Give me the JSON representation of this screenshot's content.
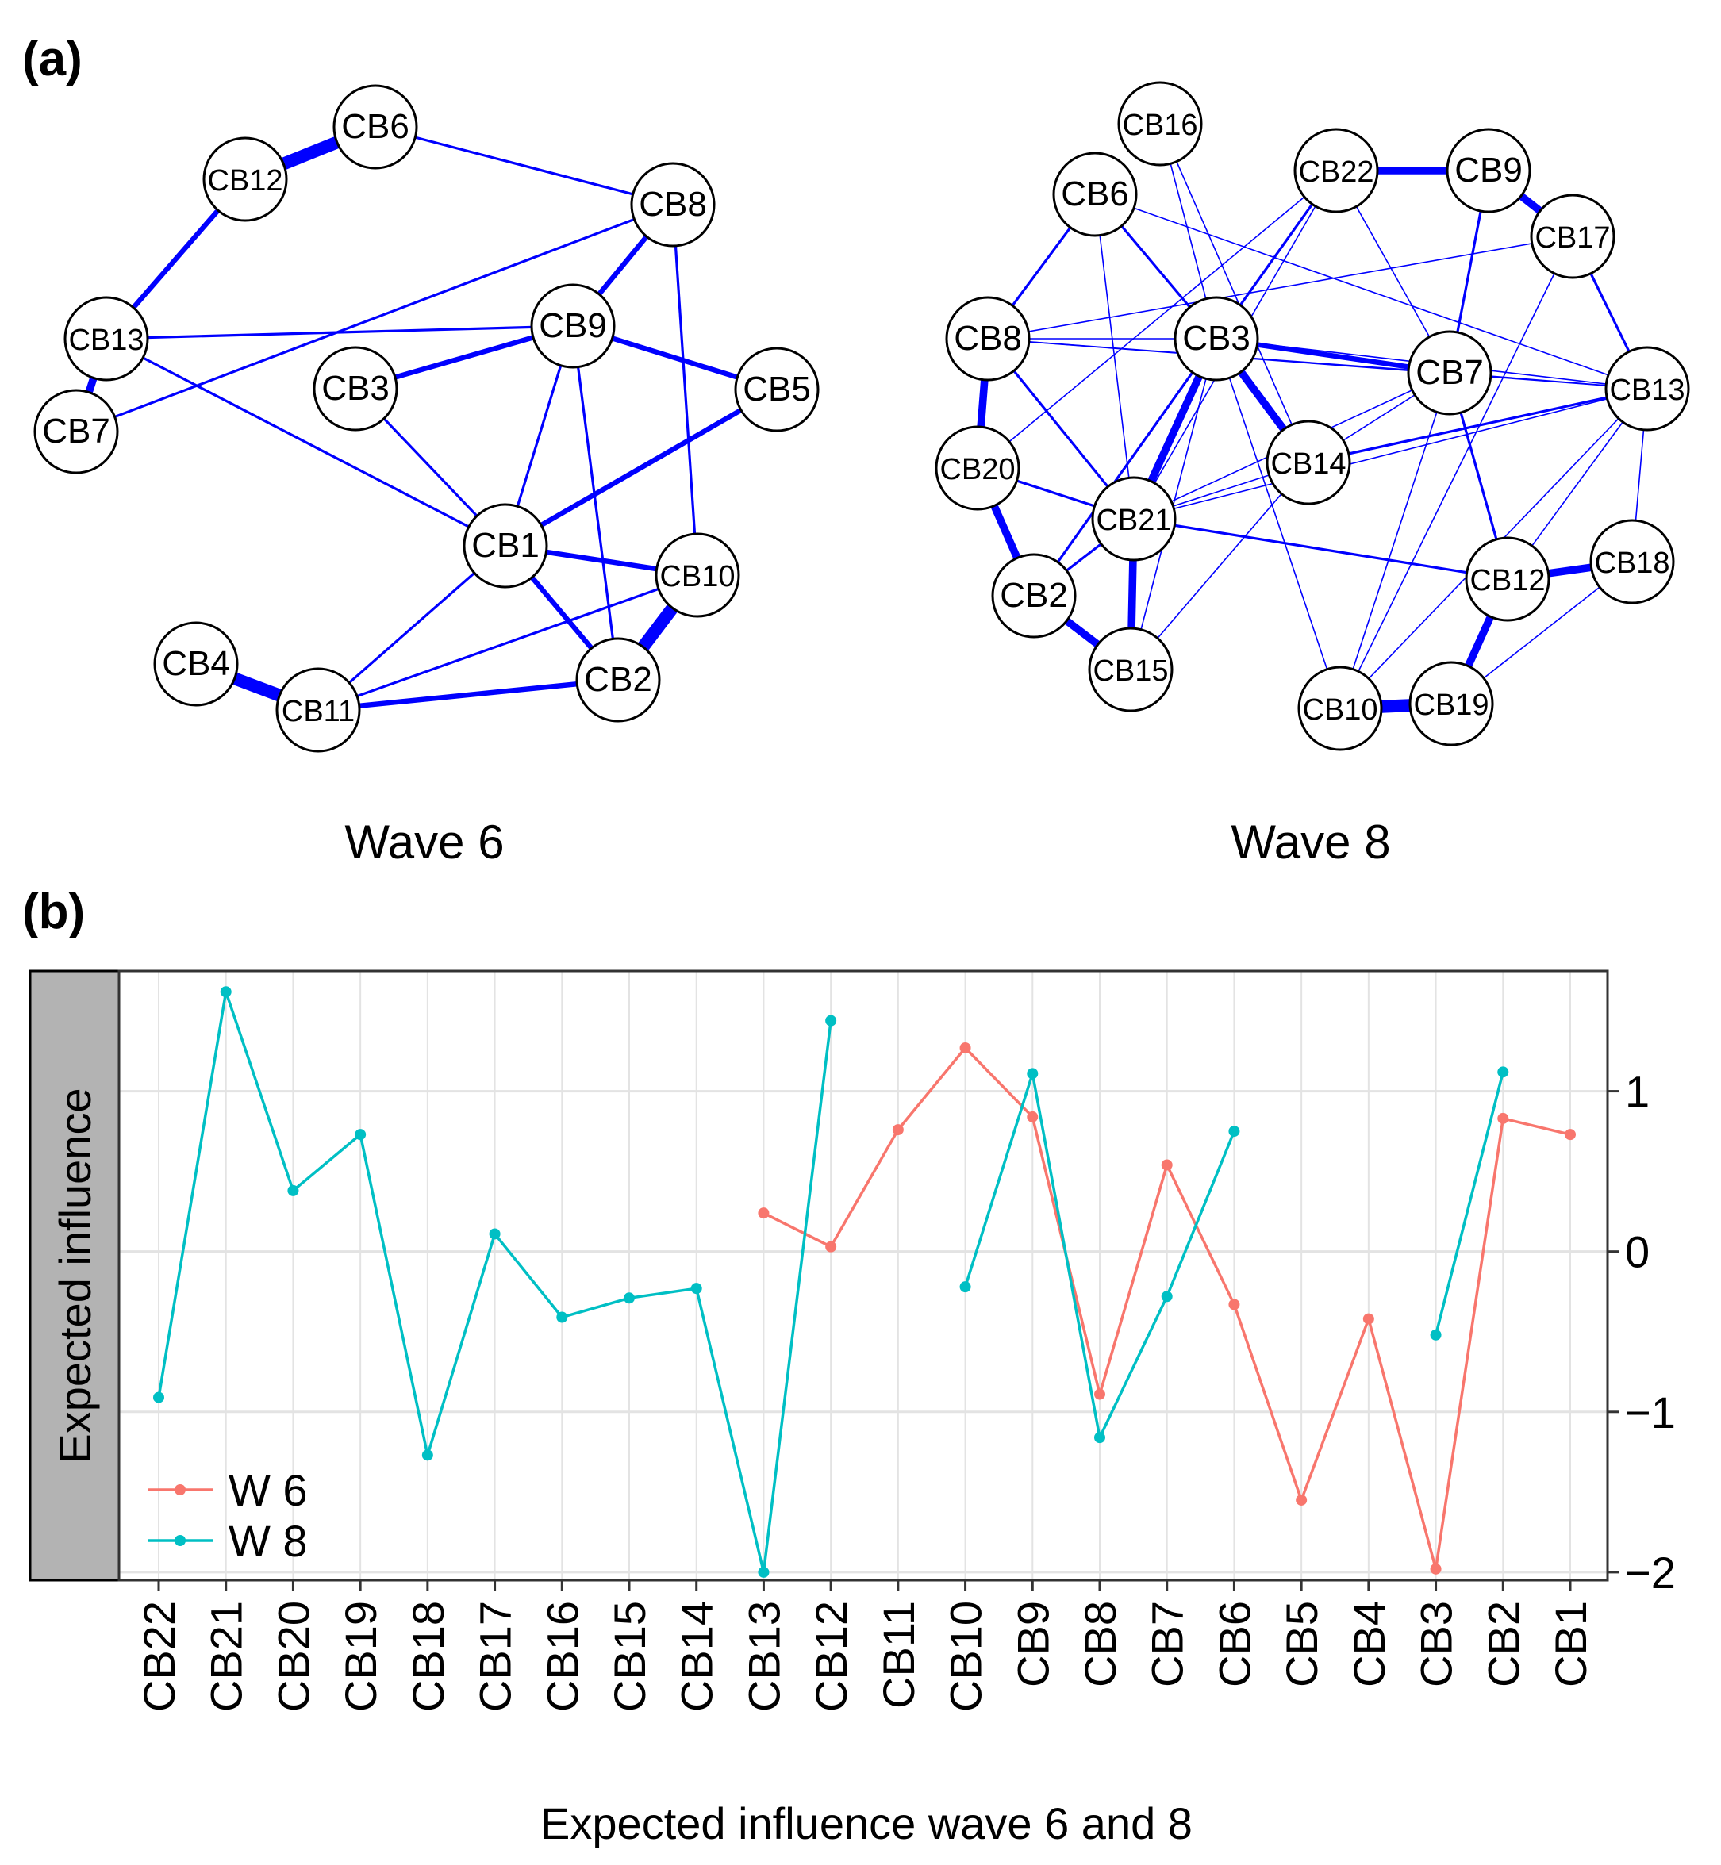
{
  "panel_a": {
    "label": "(a)",
    "edge_color": "#0000ff",
    "networks": [
      {
        "caption": "Wave 6",
        "nodes": [
          "CB1",
          "CB2",
          "CB3",
          "CB4",
          "CB5",
          "CB6",
          "CB7",
          "CB8",
          "CB9",
          "CB10",
          "CB11",
          "CB12",
          "CB13"
        ],
        "edges": [
          {
            "from": "CB12",
            "to": "CB6",
            "weight": 5
          },
          {
            "from": "CB12",
            "to": "CB13",
            "weight": 2
          },
          {
            "from": "CB13",
            "to": "CB7",
            "weight": 3
          },
          {
            "from": "CB6",
            "to": "CB8",
            "weight": 1
          },
          {
            "from": "CB7",
            "to": "CB8",
            "weight": 1
          },
          {
            "from": "CB13",
            "to": "CB9",
            "weight": 1
          },
          {
            "from": "CB13",
            "to": "CB1",
            "weight": 1
          },
          {
            "from": "CB8",
            "to": "CB9",
            "weight": 2
          },
          {
            "from": "CB8",
            "to": "CB10",
            "weight": 1
          },
          {
            "from": "CB9",
            "to": "CB3",
            "weight": 2
          },
          {
            "from": "CB9",
            "to": "CB5",
            "weight": 2
          },
          {
            "from": "CB9",
            "to": "CB1",
            "weight": 1
          },
          {
            "from": "CB9",
            "to": "CB2",
            "weight": 1
          },
          {
            "from": "CB3",
            "to": "CB1",
            "weight": 1
          },
          {
            "from": "CB5",
            "to": "CB1",
            "weight": 2
          },
          {
            "from": "CB1",
            "to": "CB10",
            "weight": 2
          },
          {
            "from": "CB1",
            "to": "CB2",
            "weight": 2
          },
          {
            "from": "CB1",
            "to": "CB11",
            "weight": 1
          },
          {
            "from": "CB10",
            "to": "CB2",
            "weight": 5
          },
          {
            "from": "CB10",
            "to": "CB11",
            "weight": 1
          },
          {
            "from": "CB2",
            "to": "CB11",
            "weight": 2
          },
          {
            "from": "CB4",
            "to": "CB11",
            "weight": 5
          }
        ]
      },
      {
        "caption": "Wave 8",
        "nodes": [
          "CB2",
          "CB3",
          "CB6",
          "CB7",
          "CB8",
          "CB9",
          "CB10",
          "CB12",
          "CB13",
          "CB14",
          "CB15",
          "CB16",
          "CB17",
          "CB18",
          "CB19",
          "CB20",
          "CB21",
          "CB22"
        ],
        "edges": [
          {
            "from": "CB22",
            "to": "CB9",
            "weight": 3
          },
          {
            "from": "CB9",
            "to": "CB17",
            "weight": 3
          },
          {
            "from": "CB9",
            "to": "CB7",
            "weight": 1
          },
          {
            "from": "CB17",
            "to": "CB13",
            "weight": 1
          },
          {
            "from": "CB6",
            "to": "CB8",
            "weight": 1
          },
          {
            "from": "CB6",
            "to": "CB3",
            "weight": 1
          },
          {
            "from": "CB6",
            "to": "CB21",
            "weight": 0.5
          },
          {
            "from": "CB6",
            "to": "CB13",
            "weight": 0.5
          },
          {
            "from": "CB16",
            "to": "CB3",
            "weight": 0.5
          },
          {
            "from": "CB16",
            "to": "CB14",
            "weight": 0.5
          },
          {
            "from": "CB22",
            "to": "CB3",
            "weight": 1
          },
          {
            "from": "CB22",
            "to": "CB21",
            "weight": 0.5
          },
          {
            "from": "CB22",
            "to": "CB20",
            "weight": 0.5
          },
          {
            "from": "CB22",
            "to": "CB7",
            "weight": 0.5
          },
          {
            "from": "CB8",
            "to": "CB3",
            "weight": 0.5
          },
          {
            "from": "CB8",
            "to": "CB7",
            "weight": 0.5
          },
          {
            "from": "CB8",
            "to": "CB20",
            "weight": 3
          },
          {
            "from": "CB8",
            "to": "CB21",
            "weight": 1
          },
          {
            "from": "CB8",
            "to": "CB17",
            "weight": 0.5
          },
          {
            "from": "CB8",
            "to": "CB13",
            "weight": 0.5
          },
          {
            "from": "CB3",
            "to": "CB7",
            "weight": 2
          },
          {
            "from": "CB3",
            "to": "CB14",
            "weight": 3
          },
          {
            "from": "CB3",
            "to": "CB21",
            "weight": 3
          },
          {
            "from": "CB3",
            "to": "CB2",
            "weight": 1
          },
          {
            "from": "CB3",
            "to": "CB15",
            "weight": 0.5
          },
          {
            "from": "CB3",
            "to": "CB10",
            "weight": 0.5
          },
          {
            "from": "CB3",
            "to": "CB13",
            "weight": 0.5
          },
          {
            "from": "CB7",
            "to": "CB14",
            "weight": 0.5
          },
          {
            "from": "CB7",
            "to": "CB21",
            "weight": 0.5
          },
          {
            "from": "CB7",
            "to": "CB12",
            "weight": 1
          },
          {
            "from": "CB7",
            "to": "CB10",
            "weight": 0.5
          },
          {
            "from": "CB7",
            "to": "CB13",
            "weight": 0.5
          },
          {
            "from": "CB14",
            "to": "CB13",
            "weight": 1
          },
          {
            "from": "CB14",
            "to": "CB21",
            "weight": 0.5
          },
          {
            "from": "CB20",
            "to": "CB21",
            "weight": 1
          },
          {
            "from": "CB20",
            "to": "CB2",
            "weight": 3
          },
          {
            "from": "CB21",
            "to": "CB2",
            "weight": 1
          },
          {
            "from": "CB21",
            "to": "CB15",
            "weight": 3
          },
          {
            "from": "CB21",
            "to": "CB12",
            "weight": 1
          },
          {
            "from": "CB2",
            "to": "CB15",
            "weight": 3
          },
          {
            "from": "CB15",
            "to": "CB14",
            "weight": 0.5
          },
          {
            "from": "CB12",
            "to": "CB18",
            "weight": 3
          },
          {
            "from": "CB12",
            "to": "CB19",
            "weight": 3
          },
          {
            "from": "CB12",
            "to": "CB13",
            "weight": 0.5
          },
          {
            "from": "CB10",
            "to": "CB19",
            "weight": 5
          },
          {
            "from": "CB10",
            "to": "CB17",
            "weight": 0.5
          },
          {
            "from": "CB10",
            "to": "CB13",
            "weight": 0.5
          },
          {
            "from": "CB19",
            "to": "CB18",
            "weight": 0.5
          },
          {
            "from": "CB13",
            "to": "CB18",
            "weight": 0.5
          },
          {
            "from": "CB21",
            "to": "CB13",
            "weight": 0.5
          }
        ]
      }
    ]
  },
  "panel_b": {
    "label": "(b)",
    "strip_label": "Expected influence",
    "strip_color": "#b3b3b3",
    "xlabel": "Expected influence wave 6 and 8"
  },
  "chart_data": {
    "type": "line",
    "title": "",
    "xlabel": "Expected influence wave 6 and 8",
    "ylabel": "Expected influence",
    "categories": [
      "CB22",
      "CB21",
      "CB20",
      "CB19",
      "CB18",
      "CB17",
      "CB16",
      "CB15",
      "CB14",
      "CB13",
      "CB12",
      "CB11",
      "CB10",
      "CB9",
      "CB8",
      "CB7",
      "CB6",
      "CB5",
      "CB4",
      "CB3",
      "CB2",
      "CB1"
    ],
    "ylim": [
      -2.05,
      1.75
    ],
    "yticks": [
      -2,
      -1,
      0,
      1
    ],
    "ytick_labels": [
      "−2",
      "−1",
      "0",
      "1"
    ],
    "grid": true,
    "y_axis_side": "right",
    "legend_position": "bottom-left",
    "series": [
      {
        "name": "W 6",
        "color": "#f8766d",
        "values": [
          null,
          null,
          null,
          null,
          null,
          null,
          null,
          null,
          null,
          0.24,
          0.03,
          0.76,
          1.27,
          0.84,
          -0.89,
          0.54,
          -0.33,
          -1.55,
          -0.42,
          -1.98,
          0.83,
          0.73
        ]
      },
      {
        "name": "W 8",
        "color": "#00bfc4",
        "values": [
          -0.91,
          1.62,
          0.38,
          0.73,
          -1.27,
          0.11,
          -0.41,
          -0.29,
          -0.23,
          -2.0,
          1.44,
          null,
          -0.22,
          1.11,
          -1.16,
          -0.28,
          0.75,
          null,
          null,
          -0.52,
          1.12,
          null
        ]
      }
    ]
  }
}
